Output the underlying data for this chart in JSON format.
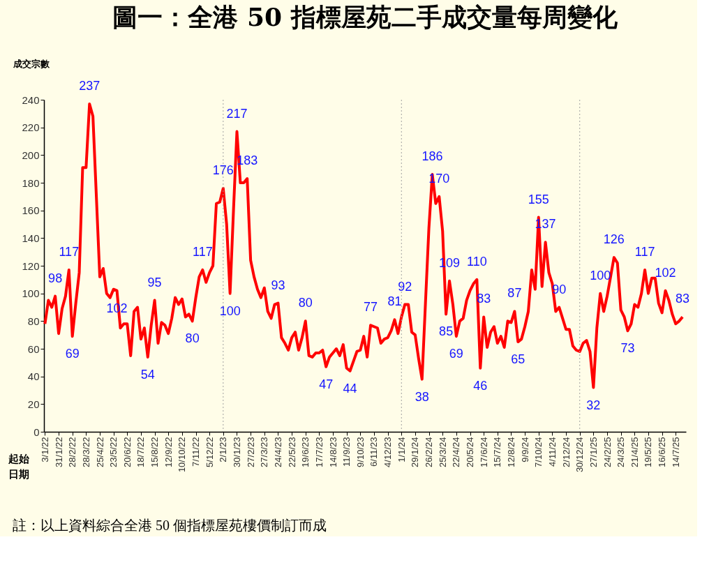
{
  "chart_data": {
    "type": "line",
    "title": "圖一：全港 50 指標屋苑二手成交量每周變化",
    "ylabel": "成交宗數",
    "xlabel": "起始日期",
    "annotations": [
      "註：以上資料綜合全港 50 個指標屋苑樓價制訂而成"
    ],
    "xlim": [
      "2022-01-01",
      "2025-08-04"
    ],
    "ylim": [
      0,
      240
    ],
    "yticks": [
      0,
      20,
      40,
      60,
      80,
      100,
      120,
      140,
      160,
      180,
      200,
      220,
      240
    ],
    "xticks": [
      {
        "value": "2022-01-03",
        "label": "3/1/22"
      },
      {
        "value": "2022-01-31",
        "label": "31/1/22"
      },
      {
        "value": "2022-02-28",
        "label": "28/2/22"
      },
      {
        "value": "2022-03-28",
        "label": "28/3/22"
      },
      {
        "value": "2022-04-25",
        "label": "25/4/22"
      },
      {
        "value": "2022-05-23",
        "label": "23/5/22"
      },
      {
        "value": "2022-06-20",
        "label": "20/6/22"
      },
      {
        "value": "2022-07-18",
        "label": "18/7/22"
      },
      {
        "value": "2022-08-15",
        "label": "15/8/22"
      },
      {
        "value": "2022-09-12",
        "label": "12/9/22"
      },
      {
        "value": "2022-10-10",
        "label": "10/10/22"
      },
      {
        "value": "2022-11-07",
        "label": "7/11/22"
      },
      {
        "value": "2022-12-05",
        "label": "5/12/22"
      },
      {
        "value": "2023-01-02",
        "label": "2/1/23"
      },
      {
        "value": "2023-01-30",
        "label": "30/1/23"
      },
      {
        "value": "2023-02-27",
        "label": "27/2/23"
      },
      {
        "value": "2023-03-27",
        "label": "27/3/23"
      },
      {
        "value": "2023-04-24",
        "label": "24/4/23"
      },
      {
        "value": "2023-05-22",
        "label": "22/5/23"
      },
      {
        "value": "2023-06-19",
        "label": "19/6/23"
      },
      {
        "value": "2023-07-17",
        "label": "17/7/23"
      },
      {
        "value": "2023-08-14",
        "label": "14/8/23"
      },
      {
        "value": "2023-09-11",
        "label": "11/9/23"
      },
      {
        "value": "2023-10-09",
        "label": "9/10/23"
      },
      {
        "value": "2023-11-06",
        "label": "6/11/23"
      },
      {
        "value": "2023-12-04",
        "label": "4/12/23"
      },
      {
        "value": "2024-01-01",
        "label": "1/1/24"
      },
      {
        "value": "2024-01-29",
        "label": "29/1/24"
      },
      {
        "value": "2024-02-26",
        "label": "26/2/24"
      },
      {
        "value": "2024-03-25",
        "label": "25/3/24"
      },
      {
        "value": "2024-04-22",
        "label": "22/4/24"
      },
      {
        "value": "2024-05-20",
        "label": "20/5/24"
      },
      {
        "value": "2024-06-17",
        "label": "17/6/24"
      },
      {
        "value": "2024-07-15",
        "label": "15/7/24"
      },
      {
        "value": "2024-08-12",
        "label": "12/8/24"
      },
      {
        "value": "2024-09-09",
        "label": "9/9/24"
      },
      {
        "value": "2024-10-07",
        "label": "7/10/24"
      },
      {
        "value": "2024-11-04",
        "label": "4/11/24"
      },
      {
        "value": "2024-12-02",
        "label": "2/12/24"
      },
      {
        "value": "2024-12-30",
        "label": "30/12/24"
      },
      {
        "value": "2025-01-27",
        "label": "27/1/25"
      },
      {
        "value": "2025-02-24",
        "label": "24/2/25"
      },
      {
        "value": "2025-03-24",
        "label": "24/3/25"
      },
      {
        "value": "2025-04-21",
        "label": "21/4/25"
      },
      {
        "value": "2025-05-19",
        "label": "19/5/25"
      },
      {
        "value": "2025-06-16",
        "label": "16/6/25"
      },
      {
        "value": "2025-07-14",
        "label": "14/7/25"
      }
    ],
    "ref_lines": [
      {
        "axis": "x",
        "value": "2023-01-02",
        "color": "#a0a0a0",
        "line_style": "dotted"
      },
      {
        "axis": "x",
        "value": "2024-01-01",
        "color": "#a0a0a0",
        "line_style": "dotted"
      },
      {
        "axis": "x",
        "value": "2024-12-30",
        "color": "#a0a0a0",
        "line_style": "dotted"
      }
    ],
    "x": [
      "2022-01-03",
      "2022-01-10",
      "2022-01-17",
      "2022-01-24",
      "2022-01-31",
      "2022-02-07",
      "2022-02-14",
      "2022-02-21",
      "2022-02-28",
      "2022-03-07",
      "2022-03-14",
      "2022-03-21",
      "2022-03-28",
      "2022-04-04",
      "2022-04-11",
      "2022-04-18",
      "2022-04-25",
      "2022-05-02",
      "2022-05-09",
      "2022-05-16",
      "2022-05-23",
      "2022-05-30",
      "2022-06-06",
      "2022-06-13",
      "2022-06-20",
      "2022-06-27",
      "2022-07-04",
      "2022-07-11",
      "2022-07-18",
      "2022-07-25",
      "2022-08-01",
      "2022-08-08",
      "2022-08-15",
      "2022-08-22",
      "2022-08-29",
      "2022-09-05",
      "2022-09-12",
      "2022-09-19",
      "2022-09-26",
      "2022-10-03",
      "2022-10-10",
      "2022-10-17",
      "2022-10-24",
      "2022-10-31",
      "2022-11-07",
      "2022-11-14",
      "2022-11-21",
      "2022-11-28",
      "2022-12-05",
      "2022-12-12",
      "2022-12-19",
      "2022-12-26",
      "2023-01-02",
      "2023-01-09",
      "2023-01-16",
      "2023-01-23",
      "2023-01-30",
      "2023-02-06",
      "2023-02-13",
      "2023-02-20",
      "2023-02-27",
      "2023-03-06",
      "2023-03-13",
      "2023-03-20",
      "2023-03-27",
      "2023-04-03",
      "2023-04-10",
      "2023-04-17",
      "2023-04-24",
      "2023-05-01",
      "2023-05-08",
      "2023-05-15",
      "2023-05-22",
      "2023-05-29",
      "2023-06-05",
      "2023-06-12",
      "2023-06-19",
      "2023-06-26",
      "2023-07-03",
      "2023-07-10",
      "2023-07-17",
      "2023-07-24",
      "2023-07-31",
      "2023-08-07",
      "2023-08-14",
      "2023-08-21",
      "2023-08-28",
      "2023-09-04",
      "2023-09-11",
      "2023-09-18",
      "2023-09-25",
      "2023-10-02",
      "2023-10-09",
      "2023-10-16",
      "2023-10-23",
      "2023-10-30",
      "2023-11-06",
      "2023-11-13",
      "2023-11-20",
      "2023-11-27",
      "2023-12-04",
      "2023-12-11",
      "2023-12-18",
      "2023-12-25",
      "2024-01-01",
      "2024-01-08",
      "2024-01-15",
      "2024-01-22",
      "2024-01-29",
      "2024-02-05",
      "2024-02-12",
      "2024-02-19",
      "2024-02-26",
      "2024-03-04",
      "2024-03-11",
      "2024-03-18",
      "2024-03-25",
      "2024-04-01",
      "2024-04-08",
      "2024-04-15",
      "2024-04-22",
      "2024-04-29",
      "2024-05-06",
      "2024-05-13",
      "2024-05-20",
      "2024-05-27",
      "2024-06-03",
      "2024-06-10",
      "2024-06-17",
      "2024-06-24",
      "2024-07-01",
      "2024-07-08",
      "2024-07-15",
      "2024-07-22",
      "2024-07-29",
      "2024-08-05",
      "2024-08-12",
      "2024-08-19",
      "2024-08-26",
      "2024-09-02",
      "2024-09-09",
      "2024-09-16",
      "2024-09-23",
      "2024-09-30",
      "2024-10-07",
      "2024-10-14",
      "2024-10-21",
      "2024-10-28",
      "2024-11-04",
      "2024-11-11",
      "2024-11-18",
      "2024-11-25",
      "2024-12-02",
      "2024-12-09",
      "2024-12-16",
      "2024-12-23",
      "2024-12-30",
      "2025-01-06",
      "2025-01-13",
      "2025-01-20",
      "2025-01-27",
      "2025-02-03",
      "2025-02-10",
      "2025-02-17",
      "2025-02-24",
      "2025-03-03",
      "2025-03-10",
      "2025-03-17",
      "2025-03-24",
      "2025-03-31",
      "2025-04-07",
      "2025-04-14",
      "2025-04-21",
      "2025-04-28",
      "2025-05-05",
      "2025-05-12",
      "2025-05-19",
      "2025-05-26",
      "2025-06-02",
      "2025-06-09",
      "2025-06-16",
      "2025-06-23",
      "2025-06-30",
      "2025-07-07",
      "2025-07-14",
      "2025-07-21",
      "2025-07-28"
    ],
    "series": [
      {
        "color": "#ff0000",
        "values": [
          78,
          95,
          90,
          98,
          71,
          89,
          98,
          117,
          69,
          93,
          115,
          191,
          191,
          237,
          228,
          170,
          112,
          118,
          100,
          97,
          103,
          102,
          75,
          78,
          78,
          55,
          87,
          90,
          67,
          75,
          54,
          77,
          95,
          64,
          79,
          77,
          71,
          82,
          97,
          92,
          96,
          83,
          85,
          80,
          97,
          112,
          117,
          108,
          115,
          120,
          165,
          166,
          176,
          150,
          100,
          160,
          217,
          180,
          180,
          183,
          124,
          112,
          103,
          97,
          104,
          87,
          82,
          92,
          93,
          68,
          64,
          59,
          68,
          72,
          59,
          68,
          80,
          55,
          54,
          57,
          57,
          59,
          47,
          54,
          57,
          60,
          55,
          63,
          46,
          44,
          51,
          58,
          59,
          69,
          54,
          77,
          76,
          75,
          64,
          67,
          68,
          73,
          81,
          71,
          83,
          92,
          92,
          72,
          70,
          53,
          38,
          93,
          147,
          186,
          165,
          170,
          145,
          85,
          109,
          92,
          69,
          80,
          82,
          95,
          102,
          107,
          110,
          46,
          83,
          61,
          72,
          76,
          64,
          69,
          61,
          80,
          79,
          87,
          65,
          67,
          76,
          87,
          117,
          103,
          155,
          105,
          137,
          115,
          107,
          87,
          90,
          82,
          74,
          74,
          62,
          59,
          58,
          64,
          66,
          58,
          32,
          75,
          100,
          87,
          98,
          112,
          126,
          122,
          88,
          83,
          73,
          78,
          92,
          90,
          100,
          117,
          100,
          111,
          111,
          93,
          86,
          102,
          95,
          85,
          78,
          80,
          83
        ],
        "value_labels": [
          null,
          null,
          null,
          "98",
          null,
          null,
          null,
          "117",
          "69",
          null,
          null,
          null,
          null,
          "237",
          null,
          null,
          null,
          null,
          null,
          null,
          null,
          "102",
          null,
          null,
          null,
          null,
          null,
          null,
          null,
          null,
          "54",
          null,
          "95",
          null,
          null,
          null,
          null,
          null,
          null,
          null,
          null,
          null,
          null,
          "80",
          null,
          null,
          "117",
          null,
          null,
          null,
          null,
          null,
          "176",
          null,
          "100",
          null,
          "217",
          null,
          null,
          "183",
          null,
          null,
          null,
          null,
          null,
          null,
          null,
          null,
          "93",
          null,
          null,
          null,
          null,
          null,
          null,
          null,
          "80",
          null,
          null,
          null,
          null,
          null,
          "47",
          null,
          null,
          null,
          null,
          null,
          null,
          "44",
          null,
          null,
          null,
          null,
          null,
          "77",
          null,
          null,
          null,
          null,
          null,
          null,
          "81",
          null,
          null,
          "92",
          null,
          null,
          null,
          null,
          "38",
          null,
          null,
          "186",
          null,
          "170",
          null,
          "85",
          "109",
          null,
          "69",
          null,
          null,
          null,
          null,
          null,
          "110",
          "46",
          "83",
          null,
          null,
          null,
          null,
          null,
          null,
          null,
          null,
          "87",
          "65",
          null,
          null,
          null,
          null,
          null,
          "155",
          null,
          "137",
          null,
          null,
          null,
          "90",
          null,
          null,
          null,
          null,
          null,
          null,
          null,
          null,
          null,
          "32",
          null,
          "100",
          null,
          null,
          null,
          "126",
          null,
          null,
          null,
          "73",
          null,
          null,
          null,
          null,
          "117",
          null,
          null,
          null,
          null,
          null,
          "102",
          null,
          null,
          null,
          null,
          "83"
        ]
      }
    ]
  }
}
